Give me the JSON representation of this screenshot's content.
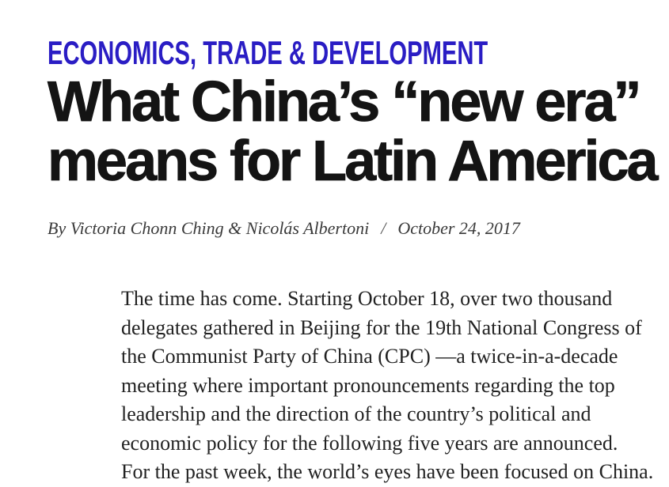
{
  "article": {
    "category": "ECONOMICS, TRADE & DEVELOPMENT",
    "title_lines": [
      "What China’s “new era”",
      "means for Latin America"
    ],
    "byline": {
      "prefix": "By",
      "authors": [
        {
          "name": "Victoria Chonn Ching"
        },
        {
          "name": "Nicolás Albertoni"
        }
      ],
      "conjunction": "&",
      "separator": "/",
      "date": "October 24, 2017"
    },
    "body_lines": [
      "The time has come. Starting October 18, over two thousand",
      "delegates gathered in Beijing for the 19th National Congress of",
      "the Communist Party of China (CPC) —a twice-in-a-decade",
      "meeting where important pronouncements regarding the top",
      "leadership and the direction of the country’s political and",
      "economic policy for the following five years are announced.",
      "For the past week, the world’s eyes have been focused on China."
    ]
  },
  "colors": {
    "accent": "#2a1dc4",
    "title": "#141414",
    "byline": "#3a3a3a",
    "separator": "#555555",
    "body": "#222222",
    "background": "#ffffff"
  }
}
